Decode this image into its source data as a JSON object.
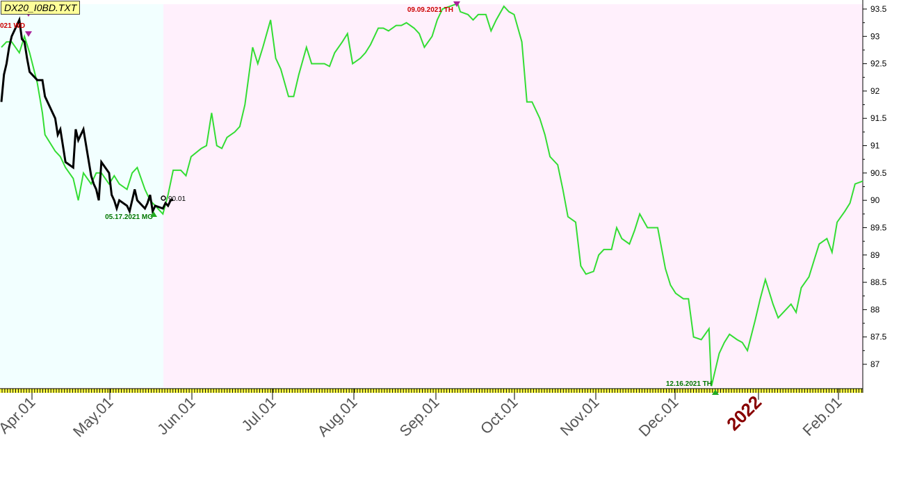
{
  "file_label": "DX20_I0BD.TXT",
  "chart_data": {
    "type": "line",
    "title": "",
    "ylim": [
      86.55,
      93.6
    ],
    "y_ticks": [
      87,
      87.5,
      88,
      88.5,
      89,
      89.5,
      90,
      90.5,
      91,
      91.5,
      92,
      92.5,
      93,
      93.5
    ],
    "x_ticks": [
      "Apr.01",
      "May.01",
      "Jun.01",
      "Jul.01",
      "Aug.01",
      "Sep.01",
      "Oct.01",
      "Nov.01",
      "Dec.01",
      "2022",
      "Feb.01"
    ],
    "colors": {
      "green_line": "#33dd33",
      "black_line": "#000000",
      "left_bg": "#f2ffff",
      "right_bg": "#fff0fc",
      "label_red": "#cc0000",
      "label_green": "#007700",
      "year_label": "#880000"
    },
    "annotations": [
      {
        "text": "021 WD",
        "kind": "high"
      },
      {
        "text": "09.09.2021 TH",
        "kind": "high"
      },
      {
        "text": "05.17.2021 MO",
        "kind": "low"
      },
      {
        "text": "12.16.2021 TH",
        "kind": "low"
      },
      {
        "text": "90.01",
        "kind": "value"
      }
    ],
    "series": [
      {
        "color": "green",
        "x": [
          "2021-03-15",
          "2021-03-17",
          "2021-03-19",
          "2021-03-22",
          "2021-03-24",
          "2021-03-26",
          "2021-03-29",
          "2021-03-31",
          "2021-04-01",
          "2021-04-05",
          "2021-04-07",
          "2021-04-09",
          "2021-04-12",
          "2021-04-14",
          "2021-04-16",
          "2021-04-19",
          "2021-04-21",
          "2021-04-23",
          "2021-04-26",
          "2021-04-28",
          "2021-04-30",
          "2021-05-03",
          "2021-05-05",
          "2021-05-07",
          "2021-05-10",
          "2021-05-12",
          "2021-05-14",
          "2021-05-17",
          "2021-05-19",
          "2021-05-21",
          "2021-05-24",
          "2021-05-26",
          "2021-05-28",
          "2021-06-01",
          "2021-06-03",
          "2021-06-05",
          "2021-06-07",
          "2021-06-09",
          "2021-06-11",
          "2021-06-14",
          "2021-06-16",
          "2021-06-18",
          "2021-06-21",
          "2021-06-23",
          "2021-06-25",
          "2021-06-28",
          "2021-06-30",
          "2021-07-02",
          "2021-07-05",
          "2021-07-07",
          "2021-07-09",
          "2021-07-12",
          "2021-07-14",
          "2021-07-16",
          "2021-07-19",
          "2021-07-21",
          "2021-07-23",
          "2021-07-26",
          "2021-07-28",
          "2021-07-30",
          "2021-08-02",
          "2021-08-04",
          "2021-08-06",
          "2021-08-09",
          "2021-08-11",
          "2021-08-13",
          "2021-08-16",
          "2021-08-18",
          "2021-08-20",
          "2021-08-23",
          "2021-08-25",
          "2021-08-27",
          "2021-08-30",
          "2021-09-01",
          "2021-09-03",
          "2021-09-06",
          "2021-09-09",
          "2021-09-10",
          "2021-09-13",
          "2021-09-15",
          "2021-09-17",
          "2021-09-20",
          "2021-09-22",
          "2021-09-24",
          "2021-09-27",
          "2021-09-29",
          "2021-10-01",
          "2021-10-04",
          "2021-10-06",
          "2021-10-08",
          "2021-10-11",
          "2021-10-13",
          "2021-10-15",
          "2021-10-18",
          "2021-10-20",
          "2021-10-22",
          "2021-10-25",
          "2021-10-27",
          "2021-10-29",
          "2021-11-01",
          "2021-11-03",
          "2021-11-05",
          "2021-11-08",
          "2021-11-10",
          "2021-11-12",
          "2021-11-15",
          "2021-11-17",
          "2021-11-19",
          "2021-11-22",
          "2021-11-24",
          "2021-11-26",
          "2021-11-29",
          "2021-12-01",
          "2021-12-03",
          "2021-12-06",
          "2021-12-08",
          "2021-12-10",
          "2021-12-13",
          "2021-12-16",
          "2021-12-17",
          "2021-12-20",
          "2021-12-22",
          "2021-12-24",
          "2021-12-27",
          "2021-12-29",
          "2021-12-31",
          "2022-01-03",
          "2022-01-05",
          "2022-01-07",
          "2022-01-10",
          "2022-01-12",
          "2022-01-14",
          "2022-01-17",
          "2022-01-19",
          "2022-01-21",
          "2022-01-24",
          "2022-01-26",
          "2022-01-28",
          "2022-01-31",
          "2022-02-02",
          "2022-02-04",
          "2022-02-07",
          "2022-02-09",
          "2022-02-11",
          "2022-02-14"
        ],
        "y": [
          92.8,
          92.9,
          92.9,
          92.7,
          93.0,
          92.7,
          92.15,
          91.6,
          91.2,
          90.9,
          90.8,
          90.6,
          90.4,
          90.0,
          90.5,
          90.3,
          90.5,
          90.5,
          90.3,
          90.45,
          90.3,
          90.2,
          90.5,
          90.6,
          90.2,
          90.0,
          89.9,
          89.75,
          90.1,
          90.55,
          90.55,
          90.45,
          90.8,
          90.95,
          91.0,
          91.6,
          91.0,
          90.95,
          91.15,
          91.25,
          91.35,
          91.75,
          92.8,
          92.5,
          92.8,
          93.3,
          92.6,
          92.4,
          91.9,
          91.9,
          92.3,
          92.8,
          92.5,
          92.5,
          92.5,
          92.45,
          92.7,
          92.9,
          93.05,
          92.5,
          92.6,
          92.7,
          92.85,
          93.15,
          93.15,
          93.1,
          93.2,
          93.2,
          93.25,
          93.15,
          93.05,
          92.8,
          93.0,
          93.3,
          93.5,
          93.55,
          93.6,
          93.45,
          93.4,
          93.3,
          93.4,
          93.4,
          93.1,
          93.3,
          93.55,
          93.45,
          93.4,
          92.9,
          91.8,
          91.8,
          91.5,
          91.2,
          90.8,
          90.65,
          90.2,
          89.7,
          89.6,
          88.8,
          88.65,
          88.7,
          89.0,
          89.1,
          89.1,
          89.5,
          89.3,
          89.2,
          89.45,
          89.75,
          89.5,
          89.5,
          89.5,
          88.75,
          88.45,
          88.3,
          88.2,
          88.2,
          87.5,
          87.45,
          87.65,
          86.6,
          87.2,
          87.4,
          87.55,
          87.45,
          87.4,
          87.25,
          87.8,
          88.2,
          88.55,
          88.1,
          87.85,
          87.95,
          88.1,
          87.95,
          88.4,
          88.6,
          88.9,
          89.2,
          89.3,
          89.05,
          89.6,
          89.8,
          89.95,
          90.3,
          90.35
        ]
      },
      {
        "color": "black",
        "x": [
          "2021-03-15",
          "2021-03-16",
          "2021-03-17",
          "2021-03-18",
          "2021-03-19",
          "2021-03-22",
          "2021-03-23",
          "2021-03-24",
          "2021-03-25",
          "2021-03-26",
          "2021-03-29",
          "2021-03-30",
          "2021-03-31",
          "2021-04-01",
          "2021-04-05",
          "2021-04-06",
          "2021-04-07",
          "2021-04-08",
          "2021-04-09",
          "2021-04-12",
          "2021-04-13",
          "2021-04-14",
          "2021-04-15",
          "2021-04-16",
          "2021-04-19",
          "2021-04-20",
          "2021-04-21",
          "2021-04-22",
          "2021-04-23",
          "2021-04-26",
          "2021-04-27",
          "2021-04-28",
          "2021-04-29",
          "2021-04-30",
          "2021-05-03",
          "2021-05-04",
          "2021-05-05",
          "2021-05-06",
          "2021-05-07",
          "2021-05-10",
          "2021-05-11",
          "2021-05-12",
          "2021-05-13",
          "2021-05-14",
          "2021-05-17",
          "2021-05-18",
          "2021-05-19",
          "2021-05-20",
          "2021-05-21"
        ],
        "y": [
          91.8,
          92.3,
          92.5,
          92.8,
          93.0,
          93.3,
          92.95,
          92.9,
          92.6,
          92.35,
          92.2,
          92.2,
          92.2,
          91.9,
          91.5,
          91.2,
          91.3,
          91.0,
          90.7,
          90.6,
          91.3,
          91.1,
          91.2,
          91.3,
          90.45,
          90.3,
          90.2,
          90.0,
          90.7,
          90.5,
          90.1,
          90.0,
          89.85,
          90.0,
          89.9,
          89.8,
          90.0,
          90.2,
          90.0,
          89.85,
          89.95,
          90.1,
          89.8,
          89.9,
          89.85,
          89.95,
          89.9,
          90.0,
          90.01
        ]
      }
    ]
  }
}
